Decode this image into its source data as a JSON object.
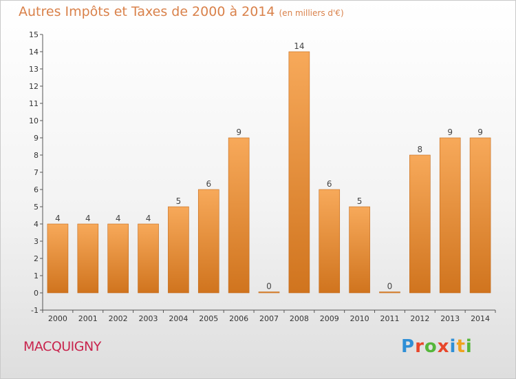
{
  "header": {
    "title": "Autres Impôts et Taxes de 2000 à 2014",
    "unit": "(en milliers d'€)"
  },
  "footer": {
    "place": "MACQUIGNY",
    "logo": "Proxiti"
  },
  "colors": {
    "bar_top": "#f7a95a",
    "bar_bottom": "#d0741e",
    "title": "#d9814a",
    "place": "#c8244d"
  },
  "chart_data": {
    "type": "bar",
    "title": "Autres Impôts et Taxes de 2000 à 2014",
    "xlabel": "",
    "ylabel": "",
    "categories": [
      "2000",
      "2001",
      "2002",
      "2003",
      "2004",
      "2005",
      "2006",
      "2007",
      "2008",
      "2009",
      "2010",
      "2011",
      "2012",
      "2013",
      "2014"
    ],
    "values": [
      4,
      4,
      4,
      4,
      5,
      6,
      9,
      0,
      14,
      6,
      5,
      0,
      8,
      9,
      9
    ],
    "ylim": [
      -1,
      15
    ],
    "yticks": [
      -1,
      0,
      1,
      2,
      3,
      4,
      5,
      6,
      7,
      8,
      9,
      10,
      11,
      12,
      13,
      14,
      15
    ],
    "grid": false,
    "legend": "none"
  }
}
